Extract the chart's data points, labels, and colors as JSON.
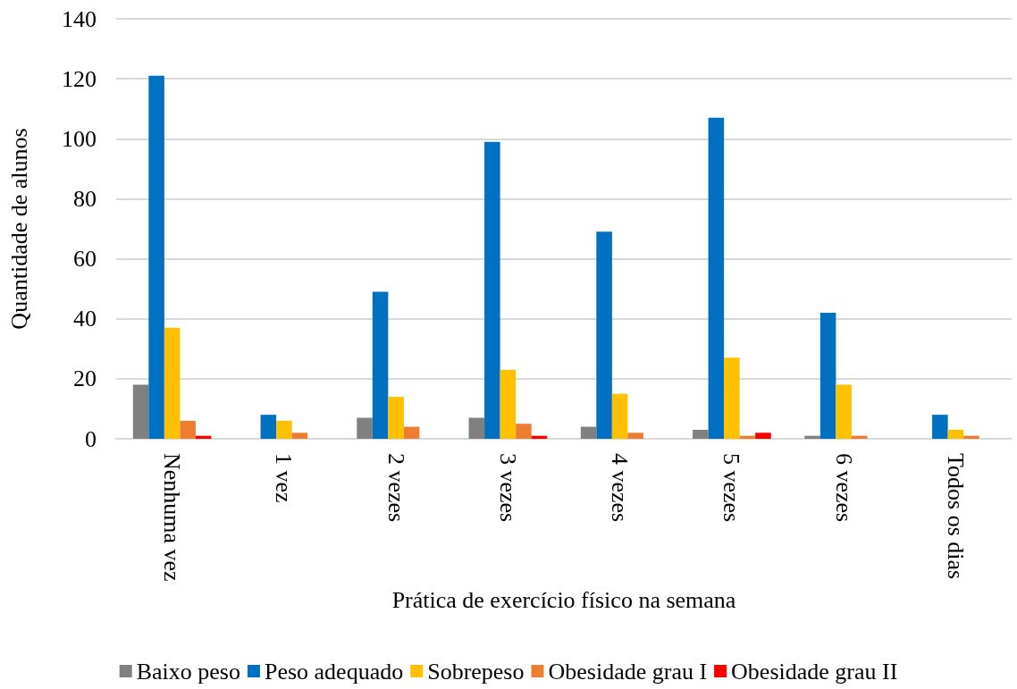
{
  "chart_data": {
    "type": "bar",
    "xlabel": "Prática de exercício físico na semana",
    "ylabel": "Quantidade de alunos",
    "categories": [
      "Nenhuma vez",
      "1 vez",
      "2 vezes",
      "3 vezes",
      "4 vezes",
      "5 vezes",
      "6 vezes",
      "Todos os dias"
    ],
    "series": [
      {
        "name": "Baixo peso",
        "color": "#808080",
        "values": [
          18,
          0,
          7,
          7,
          4,
          3,
          1,
          0
        ]
      },
      {
        "name": "Peso adequado",
        "color": "#0070c0",
        "values": [
          121,
          8,
          49,
          99,
          69,
          107,
          42,
          8
        ]
      },
      {
        "name": "Sobrepeso",
        "color": "#ffc000",
        "values": [
          37,
          6,
          14,
          23,
          15,
          27,
          18,
          3
        ]
      },
      {
        "name": "Obesidade grau I",
        "color": "#ed7d31",
        "values": [
          6,
          2,
          4,
          5,
          2,
          1,
          1,
          1
        ]
      },
      {
        "name": "Obesidade grau II",
        "color": "#ff0000",
        "values": [
          1,
          0,
          0,
          1,
          0,
          2,
          0,
          0
        ]
      }
    ],
    "ylim": [
      0,
      140
    ],
    "yticks": [
      0,
      20,
      40,
      60,
      80,
      100,
      120,
      140
    ],
    "grid": "y",
    "legend": "bottom"
  }
}
